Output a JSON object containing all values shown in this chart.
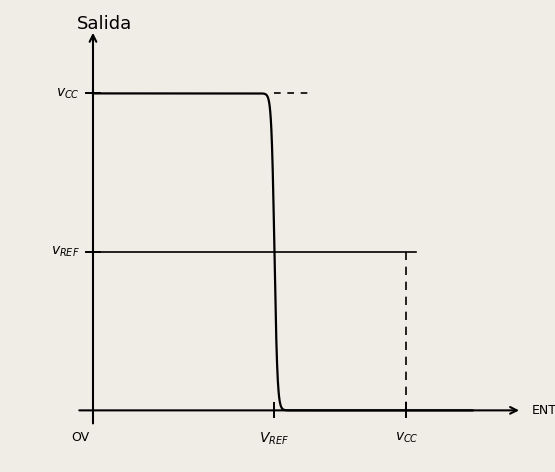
{
  "vcc": 10,
  "vref": 5,
  "bg_color": "#f0ede6",
  "curve_color": "#000000",
  "figsize": [
    5.55,
    4.72
  ],
  "dpi": 100,
  "xlim": [
    -0.8,
    13.5
  ],
  "ylim": [
    -1.2,
    12.5
  ],
  "axis_x_start": -0.5,
  "axis_x_end": 13.0,
  "axis_y_start": -0.5,
  "axis_y_end": 12.0,
  "vref_x_pos": 5.5,
  "vcc_x_pos": 9.5,
  "sigmoid_k": 22
}
